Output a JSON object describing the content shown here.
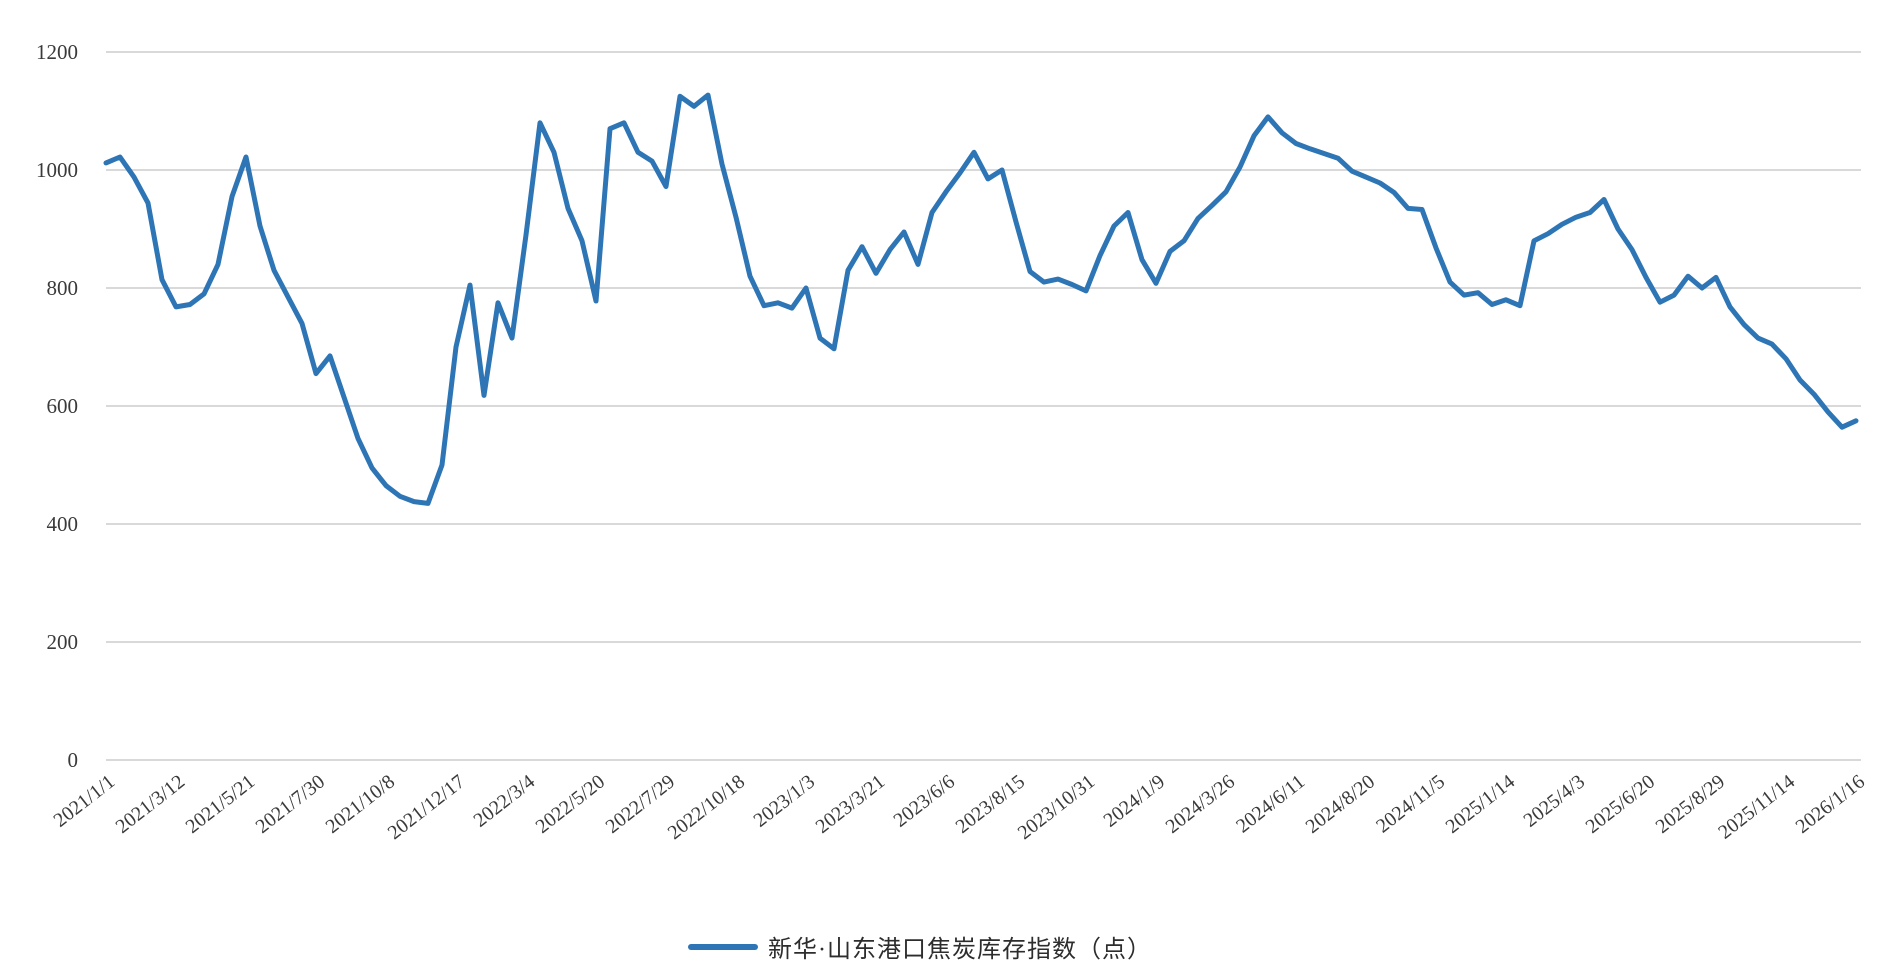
{
  "chart_data": {
    "type": "line",
    "title": "",
    "legend": "新华·山东港口焦炭库存指数（点）",
    "legend_position": "bottom-center",
    "grid": "horizontal-only",
    "line_color": "#2e75b6",
    "gridline_color": "#d9d9d9",
    "text_color": "#3a3a3a",
    "ylim": [
      0,
      1200
    ],
    "yticks": [
      0,
      200,
      400,
      600,
      800,
      1000,
      1200
    ],
    "x_tick_labels": [
      "2021/1/1",
      "2021/3/12",
      "2021/5/21",
      "2021/7/30",
      "2021/10/8",
      "2021/12/17",
      "2022/3/4",
      "2022/5/20",
      "2022/7/29",
      "2022/10/18",
      "2023/1/3",
      "2023/3/21",
      "2023/6/6",
      "2023/8/15",
      "2023/10/31",
      "2024/1/9",
      "2024/3/26",
      "2024/6/11",
      "2024/8/20",
      "2024/11/5",
      "2025/1/14",
      "2025/4/3",
      "2025/6/20",
      "2025/8/29",
      "2025/11/14",
      "2026/1/16"
    ],
    "points_per_label": 5,
    "values": [
      1012,
      1022,
      988,
      944,
      814,
      768,
      772,
      790,
      840,
      955,
      1022,
      905,
      830,
      785,
      740,
      655,
      685,
      615,
      545,
      495,
      465,
      447,
      438,
      435,
      500,
      700,
      805,
      618,
      775,
      715,
      890,
      1080,
      1030,
      935,
      880,
      778,
      1070,
      1080,
      1030,
      1015,
      972,
      1125,
      1108,
      1127,
      1010,
      920,
      820,
      770,
      775,
      766,
      800,
      715,
      697,
      830,
      870,
      825,
      865,
      895,
      840,
      928,
      963,
      995,
      1030,
      985,
      1000,
      912,
      828,
      810,
      815,
      806,
      795,
      855,
      905,
      928,
      848,
      808,
      862,
      880,
      918,
      940,
      963,
      1005,
      1058,
      1090,
      1063,
      1045,
      1036,
      1028,
      1020,
      998,
      988,
      978,
      962,
      935,
      933,
      868,
      810,
      788,
      792,
      772,
      780,
      770,
      880,
      892,
      908,
      920,
      928,
      950,
      900,
      865,
      818,
      776,
      788,
      820,
      800,
      818,
      768,
      738,
      715,
      705,
      680,
      644,
      620,
      590,
      564,
      575
    ]
  }
}
